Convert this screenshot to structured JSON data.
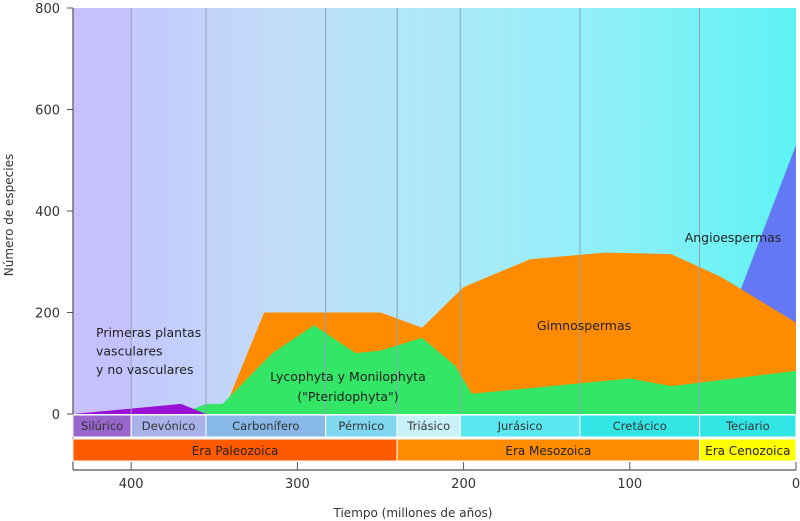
{
  "chart_data": {
    "type": "area",
    "xlabel": "Tiempo (millones de años)",
    "ylabel": "Número de especies",
    "xlim": [
      435,
      0
    ],
    "ylim": [
      0,
      800
    ],
    "x_ticks": [
      "400",
      "300",
      "200",
      "100",
      "0"
    ],
    "y_ticks": [
      "0",
      "200",
      "400",
      "600",
      "800"
    ],
    "periods": [
      {
        "name": "Silúrico",
        "start": 435,
        "end": 400,
        "color": "#9966cc"
      },
      {
        "name": "Devónico",
        "start": 400,
        "end": 355,
        "color": "#aab2ea"
      },
      {
        "name": "Carbonífero",
        "start": 355,
        "end": 283,
        "color": "#88b8e8"
      },
      {
        "name": "Pérmico",
        "start": 283,
        "end": 240,
        "color": "#7fd8f0"
      },
      {
        "name": "Triásico",
        "start": 240,
        "end": 202,
        "color": "#c8f2f8"
      },
      {
        "name": "Jurásico",
        "start": 202,
        "end": 130,
        "color": "#5ae8f0"
      },
      {
        "name": "Cretácico",
        "start": 130,
        "end": 58,
        "color": "#33e6e6"
      },
      {
        "name": "Teciario",
        "start": 58,
        "end": 0,
        "color": "#33e6e6"
      }
    ],
    "eras": [
      {
        "name": "Era Paleozoica",
        "start": 435,
        "end": 240,
        "color": "#ff5a00"
      },
      {
        "name": "Era Mesozoica",
        "start": 240,
        "end": 58,
        "color": "#ff8c00"
      },
      {
        "name": "Era Cenozoica",
        "start": 58,
        "end": 0,
        "color": "#ffff00"
      }
    ],
    "series": [
      {
        "name": "Primeras plantas vasculares y no vasculares",
        "color": "#9b11d4",
        "x": [
          435,
          370,
          355
        ],
        "y": [
          0,
          20,
          0
        ]
      },
      {
        "name": "Lycophyta y Monilophyta (\"Pteridophyta\")",
        "color": "#33e666",
        "x": [
          370,
          355,
          345,
          315,
          290,
          265,
          250,
          225,
          205,
          195,
          100,
          75,
          0
        ],
        "y": [
          0,
          20,
          20,
          120,
          175,
          120,
          125,
          150,
          95,
          40,
          70,
          55,
          85
        ]
      },
      {
        "name": "Gimnospermas",
        "color": "#ff8c00",
        "x": [
          345,
          320,
          250,
          225,
          200,
          160,
          115,
          75,
          45,
          0
        ],
        "y": [
          0,
          200,
          200,
          170,
          250,
          305,
          318,
          315,
          270,
          180
        ]
      },
      {
        "name": "Angioespermas",
        "color": "#6478f5",
        "x": [
          115,
          45,
          0
        ],
        "y": [
          0,
          145,
          530
        ]
      }
    ],
    "area_labels": {
      "primitive_lines": [
        "Primeras plantas",
        "vasculares",
        "y no vasculares"
      ],
      "lyco_lines": [
        "Lycophyta y Monilophyta",
        "(\"Pteridophyta\")"
      ],
      "gymno": "Gimnospermas",
      "angio": "Angioespermas"
    }
  }
}
